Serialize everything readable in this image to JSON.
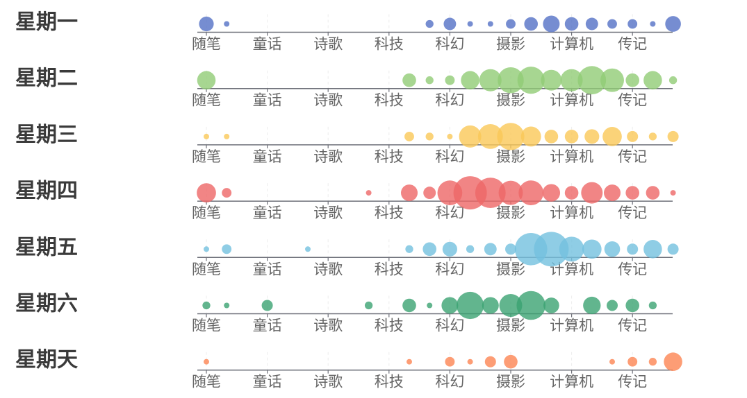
{
  "chart_data": {
    "type": "scatter",
    "categories": [
      "随笔",
      "童话",
      "诗歌",
      "科技",
      "科幻",
      "摄影",
      "计算机",
      "传记"
    ],
    "x_slots": 24,
    "colors": [
      "#5470c6",
      "#91cc75",
      "#fac858",
      "#ee6666",
      "#73c0de",
      "#3ba272",
      "#fc8452"
    ],
    "series": [
      {
        "name": "星期一",
        "values": [
          7,
          1,
          0,
          0,
          0,
          0,
          0,
          0,
          0,
          0,
          0,
          2,
          5,
          1,
          1,
          3,
          6,
          9,
          6,
          5,
          3,
          3,
          1,
          8
        ]
      },
      {
        "name": "星期二",
        "values": [
          11,
          0,
          0,
          0,
          0,
          0,
          0,
          0,
          0,
          0,
          6,
          2,
          3,
          11,
          16,
          22,
          24,
          14,
          16,
          26,
          18,
          6,
          11,
          2
        ]
      },
      {
        "name": "星期三",
        "values": [
          1,
          1,
          0,
          0,
          0,
          0,
          0,
          0,
          0,
          0,
          3,
          2,
          1,
          16,
          20,
          24,
          13,
          6,
          6,
          7,
          12,
          4,
          2,
          4
        ]
      },
      {
        "name": "星期四",
        "values": [
          12,
          3,
          0,
          0,
          0,
          0,
          0,
          0,
          1,
          0,
          9,
          5,
          20,
          36,
          30,
          19,
          20,
          10,
          6,
          15,
          9,
          6,
          6,
          1
        ]
      },
      {
        "name": "星期五",
        "values": [
          1,
          3,
          0,
          0,
          0,
          1,
          0,
          0,
          0,
          0,
          2,
          6,
          7,
          2,
          5,
          4,
          34,
          39,
          20,
          12,
          8,
          4,
          11,
          4
        ]
      },
      {
        "name": "星期六",
        "values": [
          2,
          1,
          0,
          4,
          0,
          0,
          0,
          0,
          2,
          0,
          6,
          1,
          9,
          24,
          9,
          17,
          27,
          8,
          0,
          10,
          4,
          6,
          2,
          0
        ]
      },
      {
        "name": "星期天",
        "values": [
          1,
          0,
          0,
          0,
          0,
          0,
          0,
          0,
          0,
          0,
          1,
          0,
          3,
          1,
          4,
          6,
          0,
          0,
          0,
          0,
          1,
          3,
          2,
          11
        ]
      }
    ]
  }
}
